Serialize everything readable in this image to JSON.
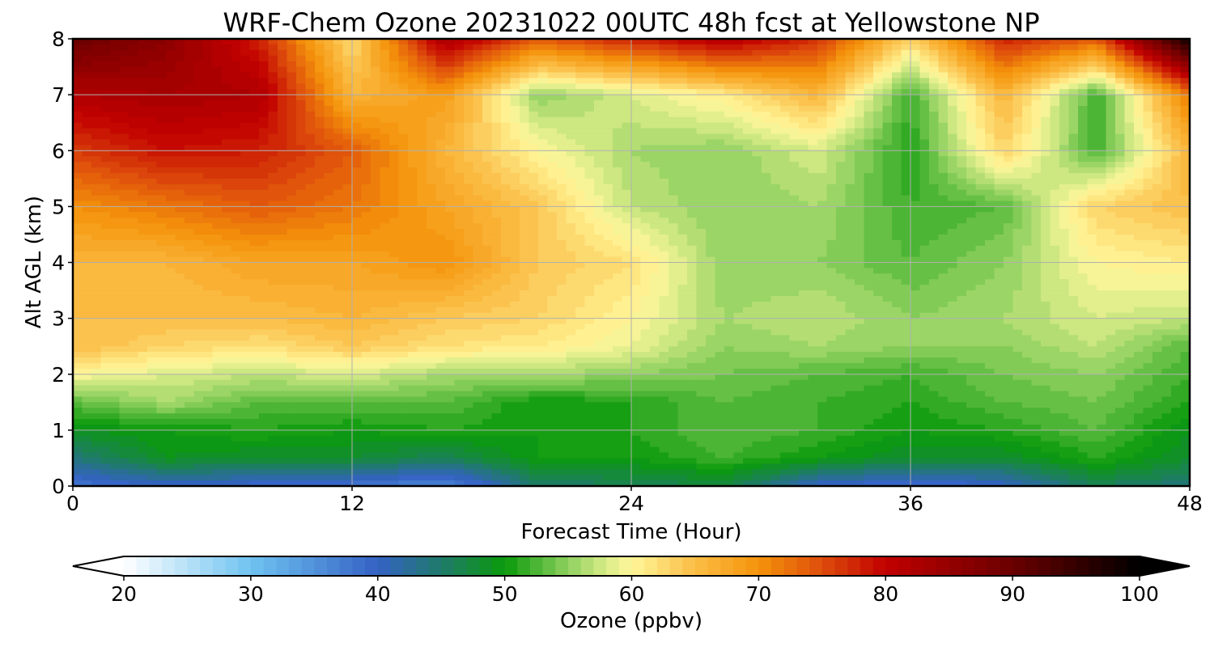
{
  "chart_data": {
    "type": "heatmap",
    "title": "WRF-Chem Ozone  20231022 00UTC 48h fcst at Yellowstone NP",
    "xlabel": "Forecast Time (Hour)",
    "ylabel": "Alt AGL (km)",
    "xlim": [
      0,
      48
    ],
    "ylim": [
      0,
      8
    ],
    "x_ticks": [
      "0",
      "12",
      "24",
      "36",
      "48"
    ],
    "y_ticks": [
      "0",
      "1",
      "2",
      "3",
      "4",
      "5",
      "6",
      "7",
      "8"
    ],
    "grid": true,
    "x": [
      0,
      4,
      8,
      12,
      16,
      20,
      24,
      28,
      32,
      36,
      40,
      44,
      48
    ],
    "y": [
      0,
      0.5,
      1,
      1.5,
      2,
      2.5,
      3,
      4,
      5,
      6,
      7,
      8
    ],
    "values": [
      [
        38,
        40,
        39,
        38,
        36,
        45,
        46,
        47,
        40,
        38,
        40,
        46,
        44
      ],
      [
        44,
        49,
        48,
        48,
        46,
        50,
        50,
        52,
        50,
        48,
        48,
        51,
        48
      ],
      [
        49,
        50,
        51,
        50,
        51,
        50,
        51,
        53,
        52,
        50,
        51,
        53,
        49
      ],
      [
        53,
        56,
        53,
        53,
        53,
        50,
        51,
        53,
        52,
        51,
        53,
        54,
        51
      ],
      [
        60,
        58,
        57,
        58,
        56,
        56,
        55,
        54,
        53,
        52,
        54,
        55,
        52
      ],
      [
        65,
        63,
        62,
        64,
        62,
        61,
        59,
        55,
        56,
        55,
        55,
        57,
        53
      ],
      [
        65,
        65,
        65,
        66,
        64,
        63,
        60,
        56,
        57,
        55,
        56,
        58,
        57
      ],
      [
        66,
        66,
        68,
        68,
        70,
        64,
        62,
        55,
        55,
        53,
        55,
        60,
        61
      ],
      [
        70,
        72,
        74,
        72,
        68,
        64,
        57,
        55,
        56,
        52,
        53,
        63,
        65
      ],
      [
        76,
        79,
        78,
        74,
        66,
        60,
        56,
        55,
        58,
        51,
        63,
        52,
        66
      ],
      [
        82,
        83,
        82,
        66,
        69,
        55,
        58,
        61,
        66,
        52,
        66,
        52,
        72
      ],
      [
        90,
        86,
        78,
        62,
        83,
        74,
        78,
        82,
        77,
        63,
        78,
        74,
        99
      ]
    ],
    "colorbar": {
      "label": "Ozone  (ppbv)",
      "min": 20,
      "max": 100,
      "ticks": [
        "20",
        "30",
        "40",
        "50",
        "60",
        "70",
        "80",
        "90",
        "100"
      ],
      "extend": "both"
    },
    "colormap": [
      {
        "v": 20,
        "c": "#ffffff"
      },
      {
        "v": 30,
        "c": "#6fc3f0"
      },
      {
        "v": 40,
        "c": "#3461c4"
      },
      {
        "v": 45,
        "c": "#1f7a6a"
      },
      {
        "v": 50,
        "c": "#0a9a0a"
      },
      {
        "v": 55,
        "c": "#8fd060"
      },
      {
        "v": 58,
        "c": "#d9ec88"
      },
      {
        "v": 60,
        "c": "#fff79a"
      },
      {
        "v": 65,
        "c": "#fbbd45"
      },
      {
        "v": 70,
        "c": "#f4930a"
      },
      {
        "v": 75,
        "c": "#de4d0c"
      },
      {
        "v": 80,
        "c": "#c10000"
      },
      {
        "v": 90,
        "c": "#6a0000"
      },
      {
        "v": 100,
        "c": "#000000"
      }
    ]
  }
}
